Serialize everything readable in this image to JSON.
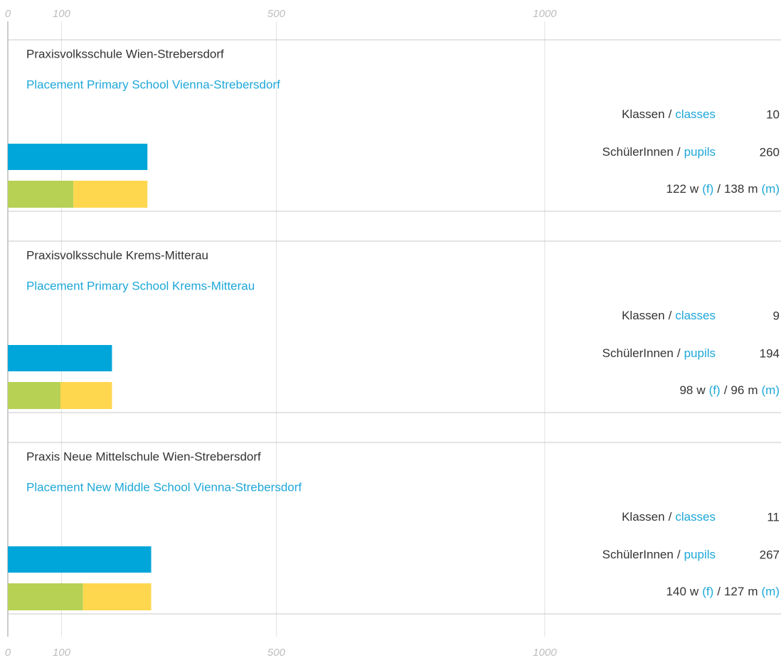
{
  "chart_data": {
    "type": "bar",
    "xlim": [
      0,
      1440
    ],
    "xticks": [
      0,
      100,
      500,
      1000
    ],
    "colors": {
      "total": "#00a6d9",
      "female": "#b7d155",
      "male": "#ffd74f",
      "text": "#333333",
      "accent": "#1ea7d8"
    },
    "labels": {
      "classes": [
        "Klassen",
        "classes"
      ],
      "pupils": [
        "SchülerInnen",
        "pupils"
      ],
      "female": [
        "w",
        "(f)"
      ],
      "male": [
        "m",
        "(m)"
      ],
      "separator": "/"
    },
    "panels": [
      {
        "title": "Praxisvolksschule Wien-Strebersdorf",
        "subtitle": "Placement Primary School Vienna-Strebersdorf",
        "classes": 10,
        "pupils": 260,
        "female": 122,
        "male": 138
      },
      {
        "title": "Praxisvolksschule Krems-Mitterau",
        "subtitle": "Placement Primary School Krems-Mitterau",
        "classes": 9,
        "pupils": 194,
        "female": 98,
        "male": 96
      },
      {
        "title": "Praxis Neue Mittelschule Wien-Strebersdorf",
        "subtitle": "Placement New Middle School Vienna-Strebersdorf",
        "classes": 11,
        "pupils": 267,
        "female": 140,
        "male": 127
      }
    ]
  }
}
